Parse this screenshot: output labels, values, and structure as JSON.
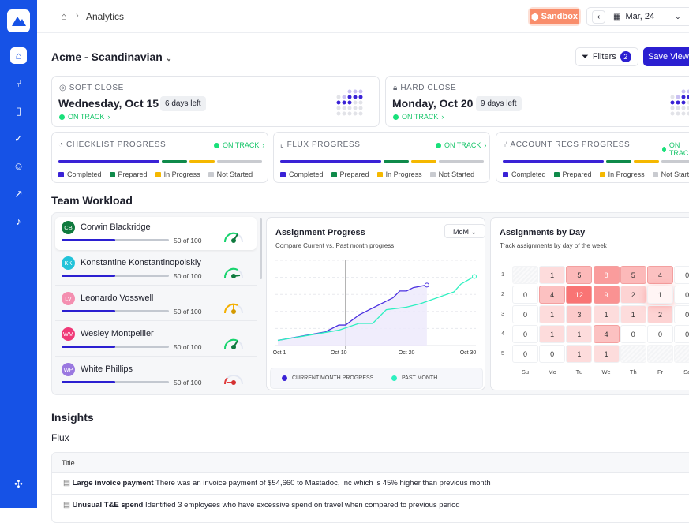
{
  "header": {
    "breadcrumb": "Analytics",
    "sandbox": "Sandbox",
    "date": "Mar, 24"
  },
  "sidebar": {
    "items": [
      "home-icon",
      "git-icon",
      "book-icon",
      "check-icon",
      "users-icon",
      "chart-icon",
      "bell-icon",
      "puzzle-icon"
    ]
  },
  "page": {
    "title": "Acme - Scandinavian",
    "filters_label": "Filters",
    "filters_count": "2",
    "save_view": "Save View"
  },
  "close_cards": [
    {
      "label": "SOFT CLOSE",
      "date": "Wednesday, Oct 15",
      "days_left": "6 days left",
      "status": "ON TRACK"
    },
    {
      "label": "HARD CLOSE",
      "date": "Monday, Oct 20",
      "days_left": "9 days left",
      "status": "ON TRACK"
    }
  ],
  "progress_cards": [
    {
      "label": "CHECKLIST PROGRESS",
      "status": "ON TRACK"
    },
    {
      "label": "FLUX PROGRESS",
      "status": "ON TRACK"
    },
    {
      "label": "ACCOUNT RECS PROGRESS",
      "status": "ON TRACK"
    }
  ],
  "progress_legend": [
    "Completed",
    "Prepared",
    "In Progress",
    "Not Started"
  ],
  "progress_colors": {
    "completed": "#3a22d6",
    "prepared": "#0f8a4a",
    "in_progress": "#f5b800",
    "not_started": "#c9cbd0"
  },
  "workload": {
    "title": "Team Workload",
    "members": [
      {
        "initials": "CB",
        "name": "Corwin Blackridge",
        "progress": "50 of 100",
        "value": 0.5,
        "color": "#0f7a3e",
        "gauge": "#18d46e"
      },
      {
        "initials": "KK",
        "name": "Konstantine Konstantinopolskiy",
        "progress": "50 of 100",
        "value": 0.5,
        "color": "#22c3d9",
        "gauge": "#18d46e"
      },
      {
        "initials": "LV",
        "name": "Leonardo Vosswell",
        "progress": "50 of 100",
        "value": 0.5,
        "color": "#f48fb0",
        "gauge": "#f5b000"
      },
      {
        "initials": "WM",
        "name": "Wesley Montpellier",
        "progress": "50 of 100",
        "value": 0.5,
        "color": "#f03a78",
        "gauge": "#18d46e"
      },
      {
        "initials": "WP",
        "name": "White Phillips",
        "progress": "50 of 100",
        "value": 0.5,
        "color": "#9a78e0",
        "gauge": "#e03a3a"
      }
    ]
  },
  "assignment_progress": {
    "title": "Assignment Progress",
    "subtitle": "Compare Current vs. Past month progress",
    "period": "MoM"
  },
  "chart_data": {
    "type": "line",
    "x_ticks": [
      "Oct 1",
      "Oct 10",
      "Oct 20",
      "Oct 30"
    ],
    "xlim": [
      1,
      31
    ],
    "ylim": [
      0,
      100
    ],
    "grid": true,
    "series": [
      {
        "name": "CURRENT MONTH PROGRESS",
        "color": "#4b30e0",
        "x": [
          1,
          8,
          10,
          11,
          13,
          15,
          18,
          19,
          20,
          21,
          23
        ],
        "y": [
          6,
          16,
          24,
          24,
          36,
          44,
          56,
          64,
          64,
          68,
          71
        ]
      },
      {
        "name": "PAST MONTH",
        "color": "#2ef0c0",
        "x": [
          1,
          10,
          13,
          15,
          17,
          20,
          22,
          27,
          28,
          30
        ],
        "y": [
          6,
          18,
          26,
          26,
          42,
          45,
          49,
          63,
          72,
          81
        ]
      }
    ]
  },
  "assignments_by_day": {
    "title": "Assignments by Day",
    "subtitle": "Track assignments by day of the week",
    "rows": [
      "1",
      "2",
      "3",
      "4",
      "5"
    ],
    "days": [
      "Su",
      "Mo",
      "Tu",
      "We",
      "Th",
      "Fr",
      "Sa"
    ],
    "values": [
      [
        null,
        1,
        5,
        8,
        5,
        4,
        0
      ],
      [
        0,
        4,
        12,
        9,
        2,
        1,
        0
      ],
      [
        0,
        1,
        3,
        1,
        1,
        2,
        0
      ],
      [
        0,
        1,
        1,
        4,
        0,
        0,
        0
      ],
      [
        0,
        0,
        1,
        1,
        null,
        null,
        null
      ]
    ]
  },
  "insights": {
    "title": "Insights",
    "section": "Flux",
    "column": "Title",
    "rows": [
      {
        "title": "Large invoice payment",
        "text": "There was an invoice payment of $54,660 to Mastadoc, Inc which is 45% higher than previous month"
      },
      {
        "title": "Unusual T&E spend",
        "text": "Identified 3 employees who have excessive spend on travel when compared to previous period"
      }
    ]
  }
}
